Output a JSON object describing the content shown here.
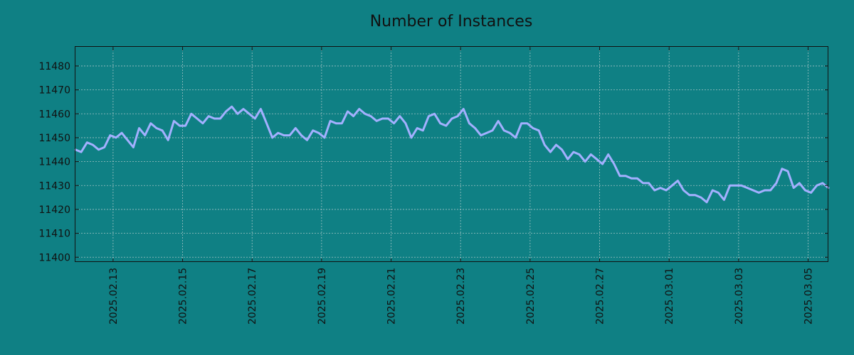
{
  "chart_data": {
    "type": "line",
    "title": "Number of Instances",
    "xlabel": "",
    "ylabel": "",
    "x_range": [
      "2025-02-11T22:00",
      "2025-03-05T14:00"
    ],
    "ylim": [
      11398,
      11488
    ],
    "yticks": [
      11400,
      11410,
      11420,
      11430,
      11440,
      11450,
      11460,
      11470,
      11480
    ],
    "xticks": [
      "2025.02.13",
      "2025.02.15",
      "2025.02.17",
      "2025.02.19",
      "2025.02.21",
      "2025.02.23",
      "2025.02.25",
      "2025.02.27",
      "2025.03.01",
      "2025.03.03",
      "2025.03.05"
    ],
    "grid": true,
    "line_color": "#a3b0ff",
    "background_color": "#0f8084",
    "series": [
      {
        "x": [
          "2025-02-11T22:00",
          "2025-02-12T02:00",
          "2025-02-12T06:00",
          "2025-02-12T10:00",
          "2025-02-12T14:00",
          "2025-02-12T18:00",
          "2025-02-12T22:00",
          "2025-02-13T02:00",
          "2025-02-13T06:00",
          "2025-02-13T10:00",
          "2025-02-13T14:00",
          "2025-02-13T18:00",
          "2025-02-13T22:00",
          "2025-02-14T02:00",
          "2025-02-14T06:00",
          "2025-02-14T10:00",
          "2025-02-14T14:00",
          "2025-02-14T18:00",
          "2025-02-14T22:00",
          "2025-02-15T02:00",
          "2025-02-15T06:00",
          "2025-02-15T10:00",
          "2025-02-15T14:00",
          "2025-02-15T18:00",
          "2025-02-15T22:00",
          "2025-02-16T02:00",
          "2025-02-16T06:00",
          "2025-02-16T10:00",
          "2025-02-16T14:00",
          "2025-02-16T18:00",
          "2025-02-16T22:00",
          "2025-02-17T02:00",
          "2025-02-17T06:00",
          "2025-02-17T10:00",
          "2025-02-17T14:00",
          "2025-02-17T18:00",
          "2025-02-17T22:00",
          "2025-02-18T02:00",
          "2025-02-18T06:00",
          "2025-02-18T10:00",
          "2025-02-18T14:00",
          "2025-02-18T18:00",
          "2025-02-18T22:00",
          "2025-02-19T02:00",
          "2025-02-19T06:00",
          "2025-02-19T10:00",
          "2025-02-19T14:00",
          "2025-02-19T18:00",
          "2025-02-19T22:00",
          "2025-02-20T02:00",
          "2025-02-20T06:00",
          "2025-02-20T10:00",
          "2025-02-20T14:00",
          "2025-02-20T18:00",
          "2025-02-20T22:00",
          "2025-02-21T02:00",
          "2025-02-21T06:00",
          "2025-02-21T10:00",
          "2025-02-21T14:00",
          "2025-02-21T18:00",
          "2025-02-21T22:00",
          "2025-02-22T02:00",
          "2025-02-22T06:00",
          "2025-02-22T10:00",
          "2025-02-22T14:00",
          "2025-02-22T18:00",
          "2025-02-22T22:00",
          "2025-02-23T02:00",
          "2025-02-23T06:00",
          "2025-02-23T10:00",
          "2025-02-23T14:00",
          "2025-02-23T18:00",
          "2025-02-23T22:00",
          "2025-02-24T02:00",
          "2025-02-24T06:00",
          "2025-02-24T10:00",
          "2025-02-24T14:00",
          "2025-02-24T18:00",
          "2025-02-24T22:00",
          "2025-02-25T02:00",
          "2025-02-25T06:00",
          "2025-02-25T10:00",
          "2025-02-25T14:00",
          "2025-02-25T18:00",
          "2025-02-25T22:00",
          "2025-02-26T02:00",
          "2025-02-26T06:00",
          "2025-02-26T10:00",
          "2025-02-26T14:00",
          "2025-02-26T18:00",
          "2025-02-26T22:00",
          "2025-02-27T02:00",
          "2025-02-27T06:00",
          "2025-02-27T10:00",
          "2025-02-27T14:00",
          "2025-02-27T18:00",
          "2025-02-27T22:00",
          "2025-02-28T02:00",
          "2025-02-28T06:00",
          "2025-02-28T10:00",
          "2025-02-28T14:00",
          "2025-02-28T18:00",
          "2025-02-28T22:00",
          "2025-03-01T02:00",
          "2025-03-01T06:00",
          "2025-03-01T10:00",
          "2025-03-01T14:00",
          "2025-03-01T18:00",
          "2025-03-01T22:00",
          "2025-03-02T02:00",
          "2025-03-02T06:00",
          "2025-03-02T10:00",
          "2025-03-02T14:00",
          "2025-03-02T18:00",
          "2025-03-02T22:00",
          "2025-03-03T02:00",
          "2025-03-03T06:00",
          "2025-03-03T10:00",
          "2025-03-03T14:00",
          "2025-03-03T18:00",
          "2025-03-03T22:00",
          "2025-03-04T02:00",
          "2025-03-04T06:00",
          "2025-03-04T10:00",
          "2025-03-04T14:00",
          "2025-03-04T18:00",
          "2025-03-04T22:00",
          "2025-03-05T02:00",
          "2025-03-05T06:00",
          "2025-03-05T10:00",
          "2025-03-05T14:00"
        ],
        "values": [
          11445,
          11444,
          11448,
          11447,
          11445,
          11446,
          11451,
          11450,
          11452,
          11449,
          11446,
          11454,
          11451,
          11456,
          11454,
          11453,
          11449,
          11457,
          11455,
          11455,
          11460,
          11458,
          11456,
          11459,
          11458,
          11458,
          11461,
          11463,
          11460,
          11462,
          11460,
          11458,
          11462,
          11456,
          11450,
          11452,
          11451,
          11451,
          11454,
          11451,
          11449,
          11453,
          11452,
          11450,
          11457,
          11456,
          11456,
          11461,
          11459,
          11462,
          11460,
          11459,
          11457,
          11458,
          11458,
          11456,
          11459,
          11456,
          11450,
          11454,
          11453,
          11459,
          11460,
          11456,
          11455,
          11458,
          11459,
          11462,
          11456,
          11454,
          11451,
          11452,
          11453,
          11457,
          11453,
          11452,
          11450,
          11456,
          11456,
          11454,
          11453,
          11447,
          11444,
          11447,
          11445,
          11441,
          11444,
          11443,
          11440,
          11443,
          11441,
          11439,
          11443,
          11439,
          11434,
          11434,
          11433,
          11433,
          11431,
          11431,
          11428,
          11429,
          11428,
          11430,
          11432,
          11428,
          11426,
          11426,
          11425,
          11423,
          11428,
          11427,
          11424,
          11430,
          11430,
          11430,
          11429,
          11428,
          11427,
          11428,
          11428,
          11431,
          11437,
          11436,
          11429,
          11431,
          11428,
          11427,
          11430,
          11431,
          11429
        ]
      }
    ]
  }
}
